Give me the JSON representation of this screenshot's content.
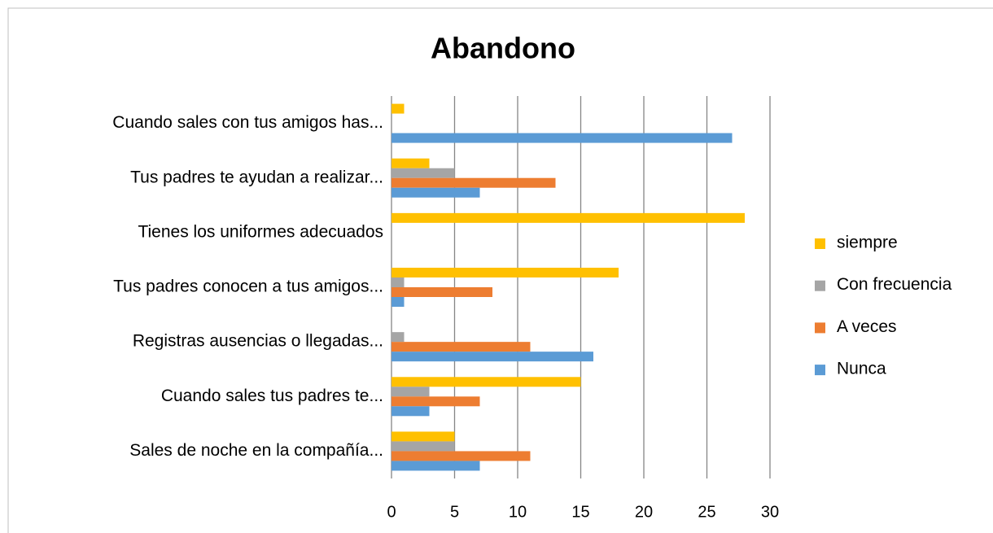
{
  "chart_data": {
    "type": "bar",
    "orientation": "horizontal",
    "title": "Abandono",
    "categories": [
      "Cuando sales con tus amigos has...",
      "Tus padres te ayudan a realizar...",
      "Tienes los uniformes adecuados",
      "Tus padres conocen a tus amigos...",
      "Registras ausencias o llegadas...",
      "Cuando sales tus padres te...",
      "Sales de noche en la compañía..."
    ],
    "series": [
      {
        "name": "siempre",
        "color": "#ffc000",
        "values": [
          1,
          3,
          28,
          18,
          0,
          15,
          5
        ]
      },
      {
        "name": "Con frecuencia",
        "color": "#a5a5a5",
        "values": [
          0,
          5,
          0,
          1,
          1,
          3,
          5
        ]
      },
      {
        "name": "A veces",
        "color": "#ed7d31",
        "values": [
          0,
          13,
          0,
          8,
          11,
          7,
          11
        ]
      },
      {
        "name": "Nunca",
        "color": "#5b9bd5",
        "values": [
          27,
          7,
          0,
          1,
          16,
          3,
          7
        ]
      }
    ],
    "xlim": [
      0,
      30
    ],
    "xticks": [
      0,
      5,
      10,
      15,
      20,
      25,
      30
    ],
    "grid": true,
    "legend": "right"
  }
}
